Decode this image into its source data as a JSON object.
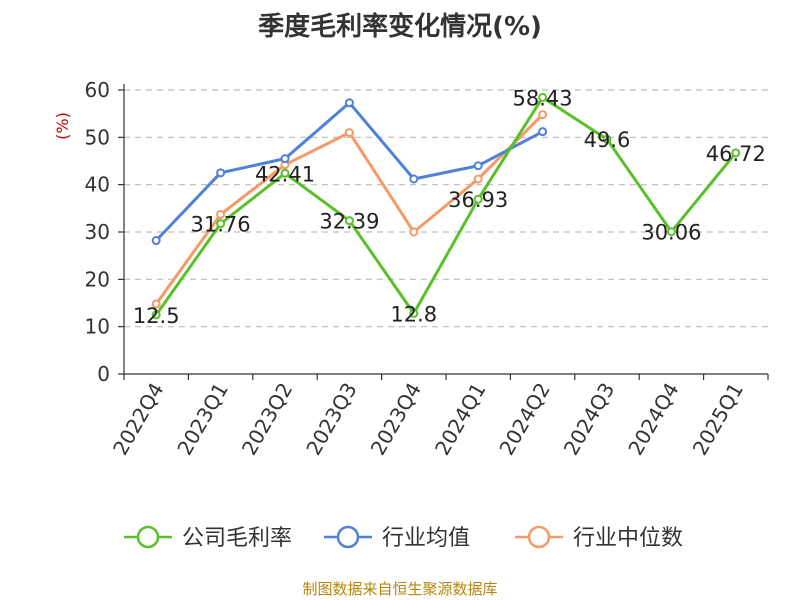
{
  "chart_data": {
    "type": "line",
    "title": "季度毛利率变化情况(%)",
    "ylabel": "(%)",
    "xlabel": "",
    "ylim": [
      0,
      60
    ],
    "yticks": [
      0,
      10,
      20,
      30,
      40,
      50,
      60
    ],
    "grid": "horizontal-dashed",
    "legend_position": "bottom",
    "categories": [
      "2022Q4",
      "2023Q1",
      "2023Q2",
      "2023Q3",
      "2023Q4",
      "2024Q1",
      "2024Q2",
      "2024Q3",
      "2024Q4",
      "2025Q1"
    ],
    "series": [
      {
        "name": "公司毛利率",
        "color": "#5ac02a",
        "values": [
          12.5,
          31.76,
          42.41,
          32.39,
          12.8,
          36.93,
          58.43,
          49.6,
          30.06,
          46.72
        ],
        "labels": [
          "12.5",
          "31.76",
          "42.41",
          "32.39",
          "12.8",
          "36.93",
          "58.43",
          "49.6",
          "30.06",
          "46.72"
        ]
      },
      {
        "name": "行业均值",
        "color": "#4f81d9",
        "values": [
          28.2,
          42.5,
          45.5,
          57.3,
          41.2,
          44.0,
          51.2,
          null,
          null,
          null
        ]
      },
      {
        "name": "行业中位数",
        "color": "#f59a66",
        "values": [
          14.8,
          33.7,
          44.2,
          51.0,
          30.0,
          41.2,
          54.8,
          null,
          null,
          null
        ]
      }
    ]
  },
  "footer": {
    "source": "制图数据来自恒生聚源数据库"
  }
}
